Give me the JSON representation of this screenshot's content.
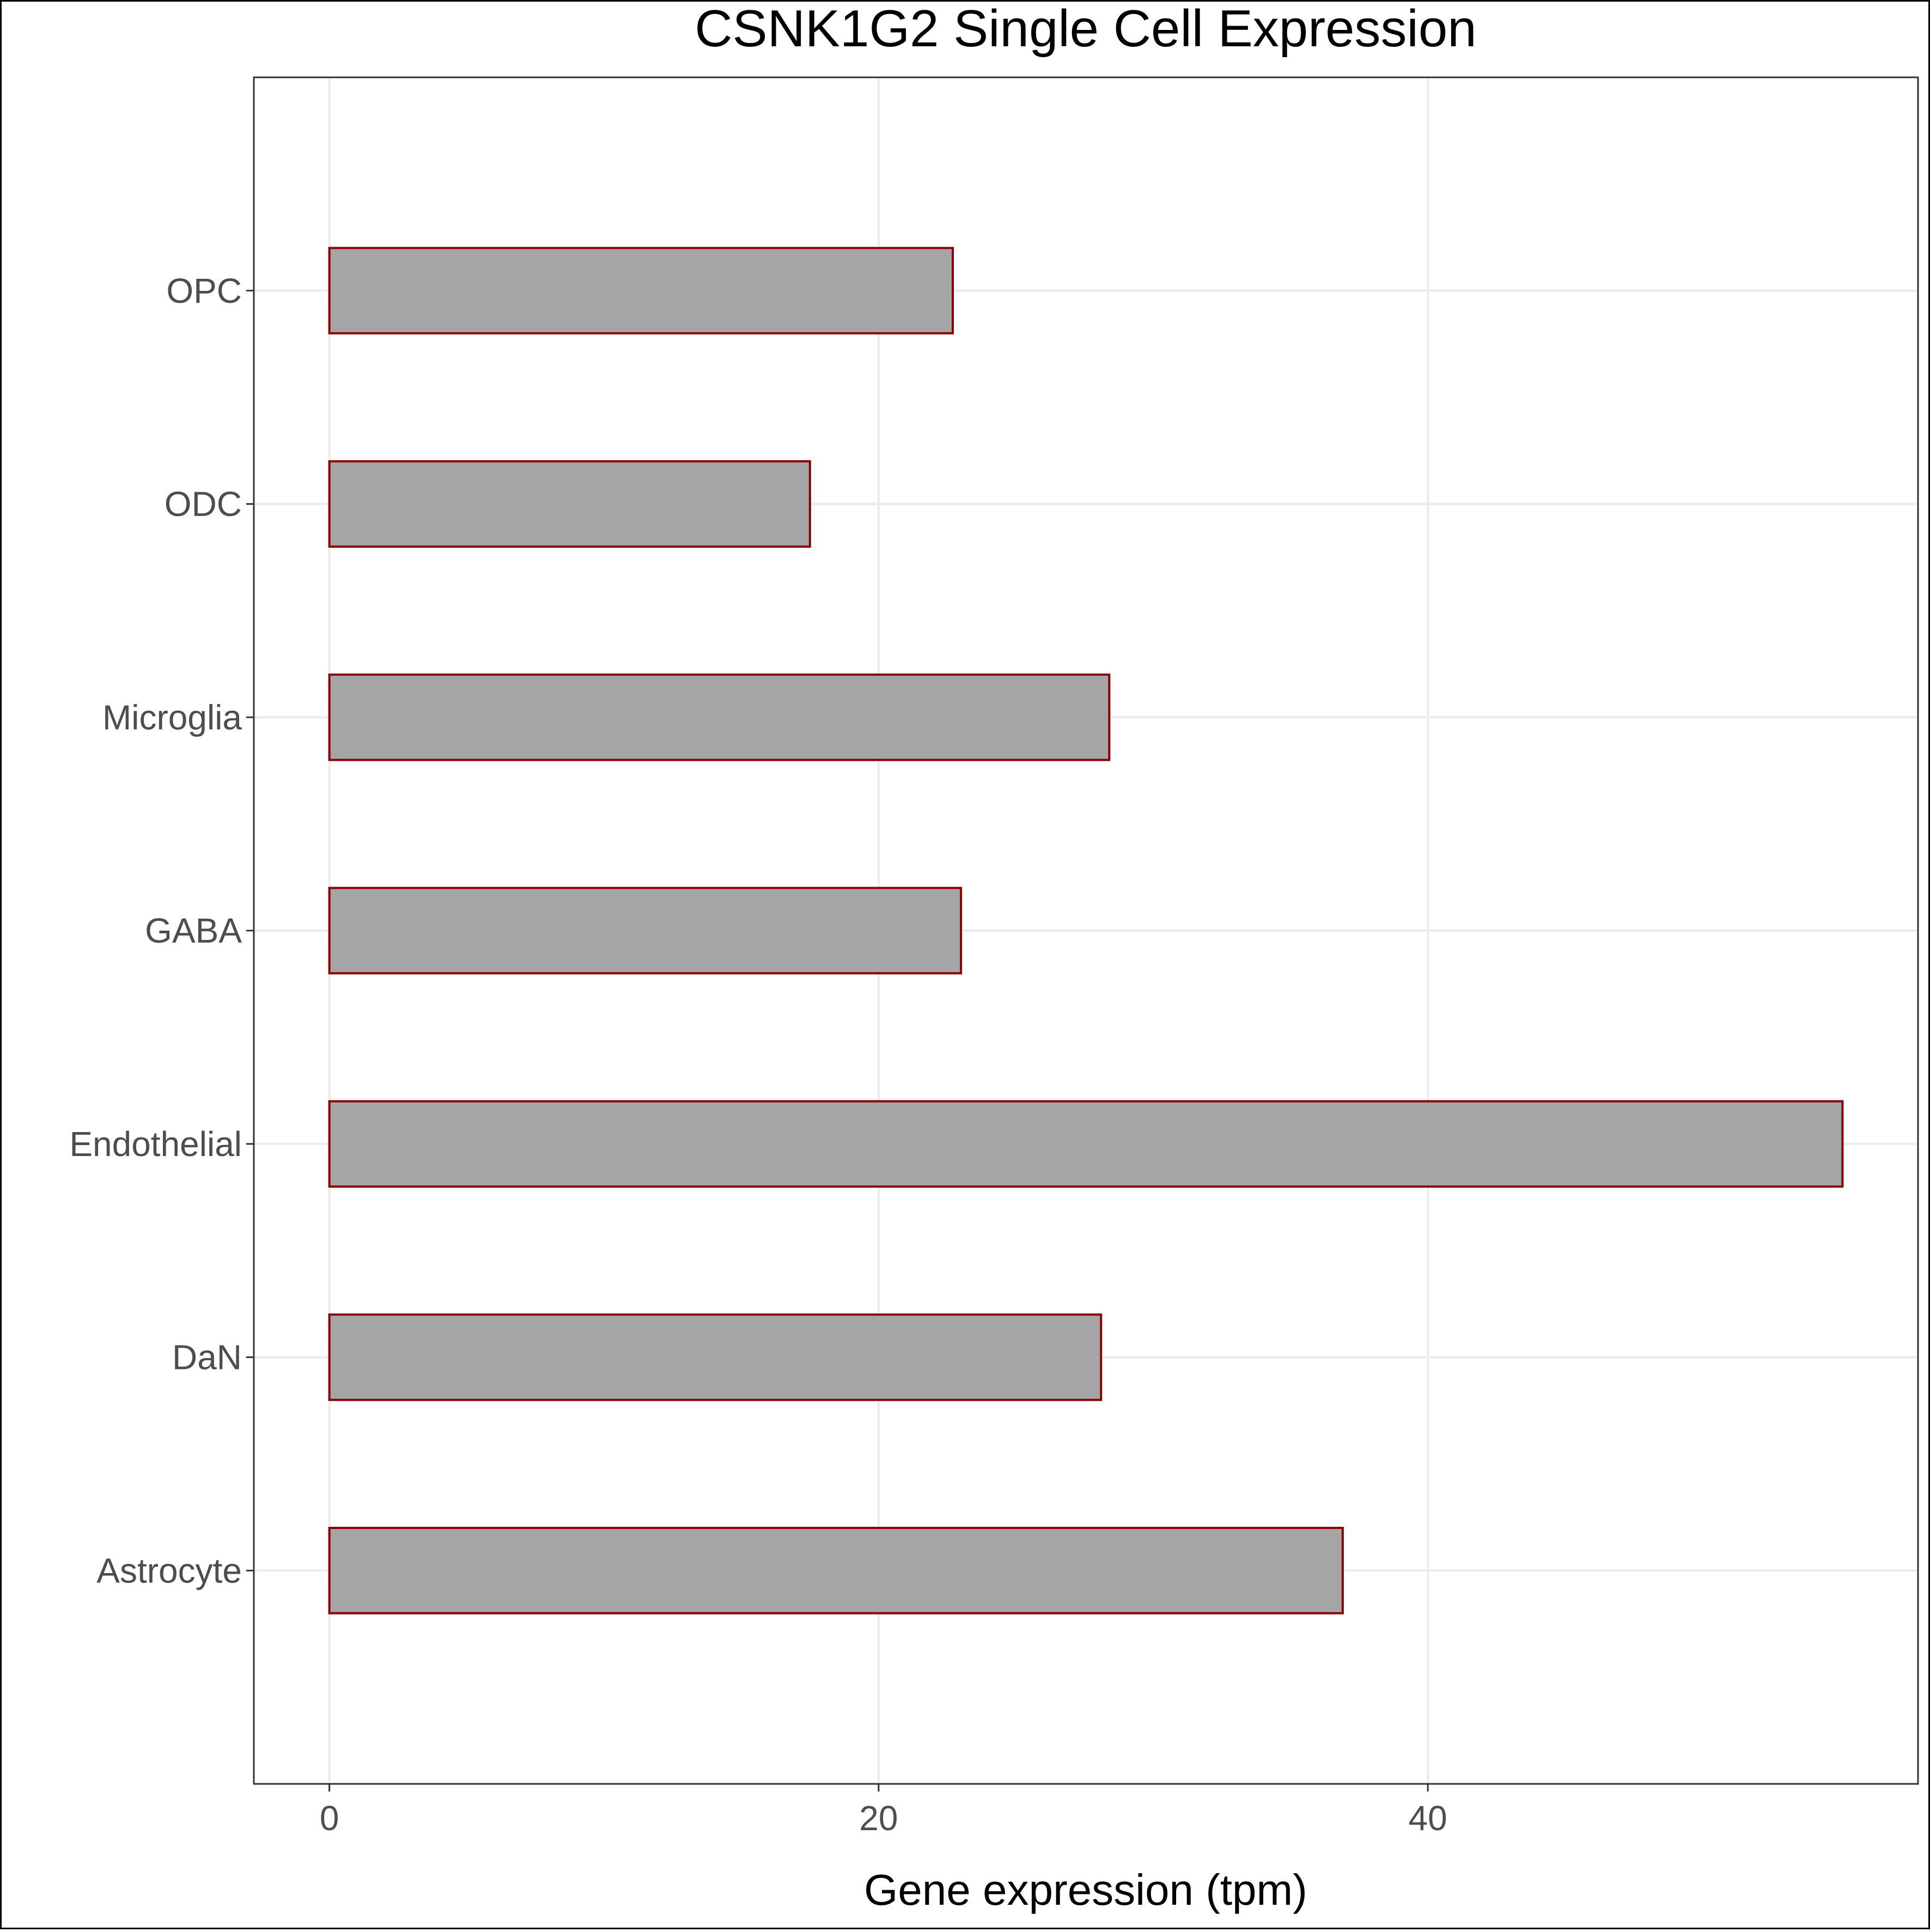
{
  "chart_data": {
    "type": "bar",
    "orientation": "horizontal",
    "title": "CSNK1G2 Single Cell Expression",
    "xlabel": "Gene expression (tpm)",
    "ylabel": "",
    "categories": [
      "Astrocyte",
      "DaN",
      "Endothelial",
      "GABA",
      "Microglia",
      "ODC",
      "OPC"
    ],
    "values": [
      36.9,
      28.1,
      55.1,
      23.0,
      28.4,
      17.5,
      22.7
    ],
    "xlim": [
      -2.75,
      57.85
    ],
    "xticks": [
      0,
      20,
      40
    ],
    "grid": true,
    "legend": "none",
    "colors": {
      "bar_fill": "#a5a5a5",
      "bar_stroke": "#8b0000",
      "grid": "#ebebeb",
      "axis_text": "#4d4d4d",
      "panel_border": "#333333"
    }
  }
}
